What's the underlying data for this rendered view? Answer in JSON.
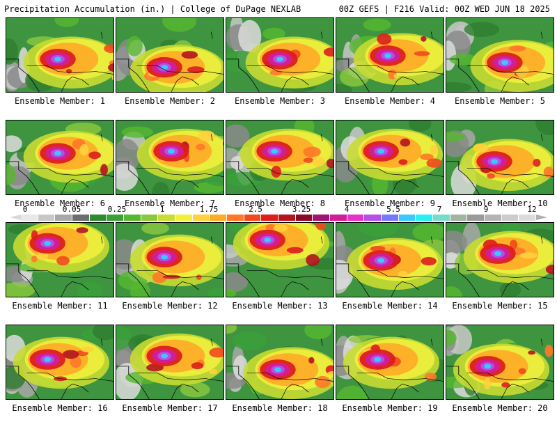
{
  "header": {
    "left": "Precipitation Accumulation (in.) | College of DuPage NEXLAB",
    "right": "00Z GEFS | F216 Valid: 00Z WED JUN 18 2025"
  },
  "panels": [
    {
      "caption": "Ensemble Member: 1"
    },
    {
      "caption": "Ensemble Member: 2"
    },
    {
      "caption": "Ensemble Member: 3"
    },
    {
      "caption": "Ensemble Member: 4"
    },
    {
      "caption": "Ensemble Member: 5"
    },
    {
      "caption": "Ensemble Member: 6"
    },
    {
      "caption": "Ensemble Member: 7"
    },
    {
      "caption": "Ensemble Member: 8"
    },
    {
      "caption": "Ensemble Member: 9"
    },
    {
      "caption": "Ensemble Member: 10"
    },
    {
      "caption": "Ensemble Member: 11"
    },
    {
      "caption": "Ensemble Member: 12"
    },
    {
      "caption": "Ensemble Member: 13"
    },
    {
      "caption": "Ensemble Member: 14"
    },
    {
      "caption": "Ensemble Member: 15"
    },
    {
      "caption": "Ensemble Member: 16"
    },
    {
      "caption": "Ensemble Member: 17"
    },
    {
      "caption": "Ensemble Member: 18"
    },
    {
      "caption": "Ensemble Member: 19"
    },
    {
      "caption": "Ensemble Member: 20"
    }
  ],
  "legend": {
    "ticks": [
      "0",
      "0.05",
      "0.25",
      "1",
      "1.75",
      "2.5",
      "3.25",
      "4",
      "5.5",
      "7",
      "9",
      "12"
    ],
    "colors": [
      "#e8e8e8",
      "#c8c8c8",
      "#a8a8a8",
      "#6e6e6e",
      "#2e8b2e",
      "#3aa03a",
      "#56b82e",
      "#8cc83c",
      "#c8dc32",
      "#f0f03c",
      "#ffd23c",
      "#ffaa28",
      "#ff7828",
      "#f04a1e",
      "#dc1e1e",
      "#b4141e",
      "#8c0a28",
      "#a0146e",
      "#d21e96",
      "#e632c8",
      "#b450e6",
      "#7878ff",
      "#3cc8ff",
      "#28f0f0",
      "#78dcc8",
      "#a0b4a0",
      "#9a9a9a",
      "#b4b4b4",
      "#cccccc",
      "#dcdcdc"
    ]
  }
}
